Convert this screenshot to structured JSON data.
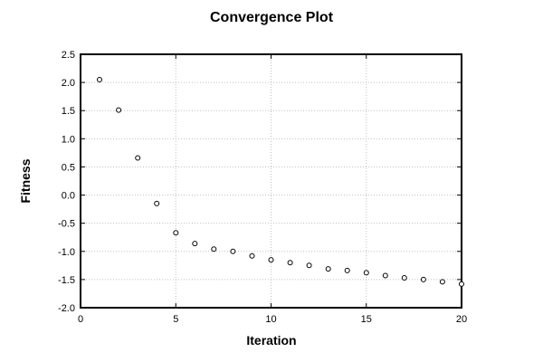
{
  "figure": {
    "background": "#ffffff",
    "text_color": "#000000"
  },
  "chart_data": {
    "type": "scatter",
    "title": "Convergence Plot",
    "xlabel": "Iteration",
    "ylabel": "Fitness",
    "x": [
      1,
      2,
      3,
      4,
      5,
      6,
      7,
      8,
      9,
      10,
      11,
      12,
      13,
      14,
      15,
      16,
      17,
      18,
      19,
      20
    ],
    "y": [
      2.05,
      1.51,
      0.66,
      -0.15,
      -0.67,
      -0.86,
      -0.96,
      -1.0,
      -1.08,
      -1.15,
      -1.2,
      -1.25,
      -1.31,
      -1.34,
      -1.38,
      -1.43,
      -1.47,
      -1.5,
      -1.54,
      -1.58
    ],
    "xlim": [
      0,
      20
    ],
    "ylim": [
      -2.0,
      2.5
    ],
    "xticks": [
      0,
      5,
      10,
      15,
      20
    ],
    "xtick_labels": [
      "0",
      "5",
      "10",
      "15",
      "20"
    ],
    "yticks": [
      2.5,
      2.0,
      1.5,
      1.0,
      0.5,
      0.0,
      -0.5,
      -1.0,
      -1.5,
      -2.0
    ],
    "ytick_labels": [
      "2.5",
      "2.0",
      "1.5",
      "1.0",
      "0.5",
      "0.0",
      "-0.5",
      "-1.0",
      "-1.5",
      "-2.0"
    ],
    "grid": "dotted",
    "legend": "none",
    "marker": "open-circle",
    "colors": {
      "marker_edge": "#000000",
      "marker_fill": "#ffffff",
      "grid": "#c0c0c0",
      "axis": "#000000",
      "background": "#ffffff"
    }
  }
}
